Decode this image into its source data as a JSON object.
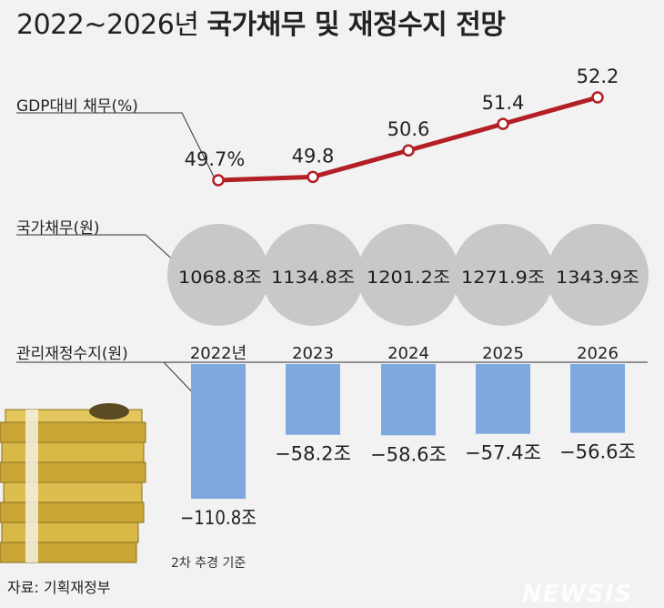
{
  "title": {
    "prefix": "2022~2026년",
    "main": "국가채무 및 재정수지 전망"
  },
  "labels": {
    "gdp_ratio": "GDP대비 채무(%)",
    "debt": "국가채무(원)",
    "balance": "관리재정수지(원)"
  },
  "note": "2차 추경 기준",
  "source": "자료: 기획재정부",
  "watermark": "NEWSIS",
  "colors": {
    "line": "#b21f24",
    "bubble": "#c8c8c8",
    "bar": "#7fa8de",
    "background": "#f2f2f2"
  },
  "chart_data": [
    {
      "type": "line",
      "categories": [
        "2022년",
        "2023",
        "2024",
        "2025",
        "2026"
      ],
      "series": [
        {
          "values": [
            49.7,
            49.8,
            50.6,
            51.4,
            52.2
          ]
        }
      ],
      "data_labels": [
        "49.7%",
        "49.8",
        "50.6",
        "51.4",
        "52.2"
      ],
      "ylabel": "GDP대비 채무(%)"
    },
    {
      "type": "bubble",
      "categories": [
        "2022년",
        "2023",
        "2024",
        "2025",
        "2026"
      ],
      "values": [
        1068.8,
        1134.8,
        1201.2,
        1271.9,
        1343.9
      ],
      "data_labels": [
        "1068.8조",
        "1134.8조",
        "1201.2조",
        "1271.9조",
        "1343.9조"
      ],
      "ylabel": "국가채무(원)"
    },
    {
      "type": "bar",
      "categories": [
        "2022년",
        "2023",
        "2024",
        "2025",
        "2026"
      ],
      "values": [
        -110.8,
        -58.2,
        -58.6,
        -57.4,
        -56.6
      ],
      "data_labels": [
        "−110.8조",
        "−58.2조",
        "−58.6조",
        "−57.4조",
        "−56.6조"
      ],
      "ylabel": "관리재정수지(원)"
    }
  ]
}
